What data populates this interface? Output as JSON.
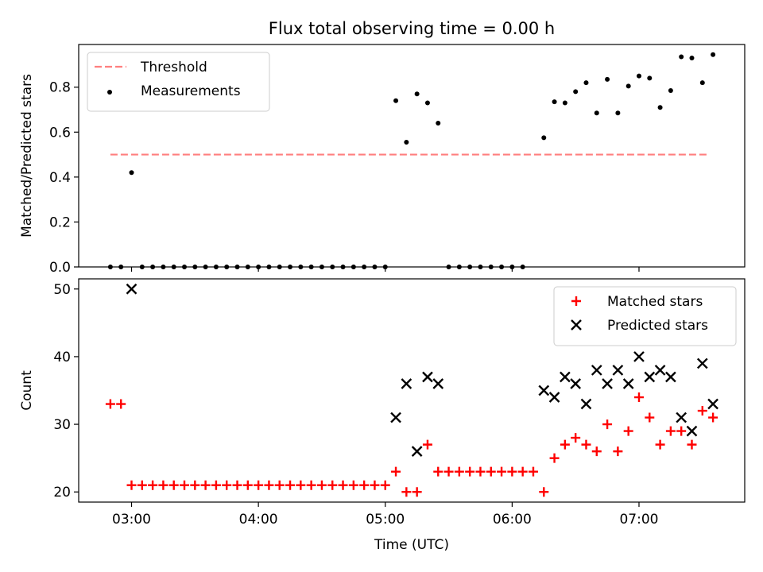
{
  "chart_data": [
    {
      "type": "scatter",
      "title": "Flux total observing time = 0.00 h",
      "xlabel": "",
      "ylabel": "Matched/Predicted stars",
      "xlim": [
        "02:35",
        "07:50"
      ],
      "ylim": [
        0,
        0.99
      ],
      "yticks": [
        "0.0",
        "0.2",
        "0.4",
        "0.6",
        "0.8"
      ],
      "grid": false,
      "legend_position": "top-left",
      "threshold": {
        "name": "Threshold",
        "value": 0.5,
        "x_range": [
          "02:50",
          "07:33"
        ],
        "color": "#ff7f7f",
        "style": "dashed"
      },
      "series": [
        {
          "name": "Measurements",
          "marker": "dot",
          "color": "#000000",
          "points": [
            [
              "02:50",
              0
            ],
            [
              "02:55",
              0
            ],
            [
              "03:00",
              0.42
            ],
            [
              "03:05",
              0
            ],
            [
              "03:10",
              0
            ],
            [
              "03:15",
              0
            ],
            [
              "03:20",
              0
            ],
            [
              "03:25",
              0
            ],
            [
              "03:30",
              0
            ],
            [
              "03:35",
              0
            ],
            [
              "03:40",
              0
            ],
            [
              "03:45",
              0
            ],
            [
              "03:50",
              0
            ],
            [
              "03:55",
              0
            ],
            [
              "04:00",
              0
            ],
            [
              "04:05",
              0
            ],
            [
              "04:10",
              0
            ],
            [
              "04:15",
              0
            ],
            [
              "04:20",
              0
            ],
            [
              "04:25",
              0
            ],
            [
              "04:30",
              0
            ],
            [
              "04:35",
              0
            ],
            [
              "04:40",
              0
            ],
            [
              "04:45",
              0
            ],
            [
              "04:50",
              0
            ],
            [
              "04:55",
              0
            ],
            [
              "05:00",
              0
            ],
            [
              "05:05",
              0.74
            ],
            [
              "05:10",
              0.555
            ],
            [
              "05:15",
              0.77
            ],
            [
              "05:20",
              0.73
            ],
            [
              "05:25",
              0.64
            ],
            [
              "05:30",
              0
            ],
            [
              "05:35",
              0
            ],
            [
              "05:40",
              0
            ],
            [
              "05:45",
              0
            ],
            [
              "05:50",
              0
            ],
            [
              "05:55",
              0
            ],
            [
              "06:00",
              0
            ],
            [
              "06:05",
              0
            ],
            [
              "06:15",
              0.575
            ],
            [
              "06:20",
              0.735
            ],
            [
              "06:25",
              0.73
            ],
            [
              "06:30",
              0.78
            ],
            [
              "06:35",
              0.82
            ],
            [
              "06:40",
              0.685
            ],
            [
              "06:45",
              0.835
            ],
            [
              "06:50",
              0.685
            ],
            [
              "06:55",
              0.805
            ],
            [
              "07:00",
              0.85
            ],
            [
              "07:05",
              0.84
            ],
            [
              "07:10",
              0.71
            ],
            [
              "07:15",
              0.785
            ],
            [
              "07:20",
              0.935
            ],
            [
              "07:25",
              0.93
            ],
            [
              "07:30",
              0.82
            ],
            [
              "07:35",
              0.945
            ]
          ]
        }
      ]
    },
    {
      "type": "scatter",
      "title": "",
      "xlabel": "Time (UTC)",
      "ylabel": "Count",
      "xlim": [
        "02:35",
        "07:50"
      ],
      "ylim": [
        18.5,
        51.5
      ],
      "yticks": [
        "20",
        "30",
        "40",
        "50"
      ],
      "xticks": [
        "03:00",
        "04:00",
        "05:00",
        "06:00",
        "07:00"
      ],
      "grid": false,
      "legend_position": "top-right",
      "series": [
        {
          "name": "Matched stars",
          "marker": "plus",
          "color": "#ff0000",
          "points": [
            [
              "02:50",
              33
            ],
            [
              "02:55",
              33
            ],
            [
              "03:00",
              21
            ],
            [
              "03:05",
              21
            ],
            [
              "03:10",
              21
            ],
            [
              "03:15",
              21
            ],
            [
              "03:20",
              21
            ],
            [
              "03:25",
              21
            ],
            [
              "03:30",
              21
            ],
            [
              "03:35",
              21
            ],
            [
              "03:40",
              21
            ],
            [
              "03:45",
              21
            ],
            [
              "03:50",
              21
            ],
            [
              "03:55",
              21
            ],
            [
              "04:00",
              21
            ],
            [
              "04:05",
              21
            ],
            [
              "04:10",
              21
            ],
            [
              "04:15",
              21
            ],
            [
              "04:20",
              21
            ],
            [
              "04:25",
              21
            ],
            [
              "04:30",
              21
            ],
            [
              "04:35",
              21
            ],
            [
              "04:40",
              21
            ],
            [
              "04:45",
              21
            ],
            [
              "04:50",
              21
            ],
            [
              "04:55",
              21
            ],
            [
              "05:00",
              21
            ],
            [
              "05:05",
              23
            ],
            [
              "05:10",
              20
            ],
            [
              "05:15",
              20
            ],
            [
              "05:20",
              27
            ],
            [
              "05:25",
              23
            ],
            [
              "05:30",
              23
            ],
            [
              "05:35",
              23
            ],
            [
              "05:40",
              23
            ],
            [
              "05:45",
              23
            ],
            [
              "05:50",
              23
            ],
            [
              "05:55",
              23
            ],
            [
              "06:00",
              23
            ],
            [
              "06:05",
              23
            ],
            [
              "06:10",
              23
            ],
            [
              "06:15",
              20
            ],
            [
              "06:20",
              25
            ],
            [
              "06:25",
              27
            ],
            [
              "06:30",
              28
            ],
            [
              "06:35",
              27
            ],
            [
              "06:40",
              26
            ],
            [
              "06:45",
              30
            ],
            [
              "06:50",
              26
            ],
            [
              "06:55",
              29
            ],
            [
              "07:00",
              34
            ],
            [
              "07:05",
              31
            ],
            [
              "07:10",
              27
            ],
            [
              "07:15",
              29
            ],
            [
              "07:20",
              29
            ],
            [
              "07:25",
              27
            ],
            [
              "07:30",
              32
            ],
            [
              "07:35",
              31
            ]
          ]
        },
        {
          "name": "Predicted stars",
          "marker": "cross",
          "color": "#000000",
          "points": [
            [
              "03:00",
              50
            ],
            [
              "05:05",
              31
            ],
            [
              "05:10",
              36
            ],
            [
              "05:15",
              26
            ],
            [
              "05:20",
              37
            ],
            [
              "05:25",
              36
            ],
            [
              "06:15",
              35
            ],
            [
              "06:20",
              34
            ],
            [
              "06:25",
              37
            ],
            [
              "06:30",
              36
            ],
            [
              "06:35",
              33
            ],
            [
              "06:40",
              38
            ],
            [
              "06:45",
              36
            ],
            [
              "06:50",
              38
            ],
            [
              "06:55",
              36
            ],
            [
              "07:00",
              40
            ],
            [
              "07:05",
              37
            ],
            [
              "07:10",
              38
            ],
            [
              "07:15",
              37
            ],
            [
              "07:20",
              31
            ],
            [
              "07:25",
              29
            ],
            [
              "07:30",
              39
            ],
            [
              "07:35",
              33
            ]
          ]
        }
      ]
    }
  ]
}
